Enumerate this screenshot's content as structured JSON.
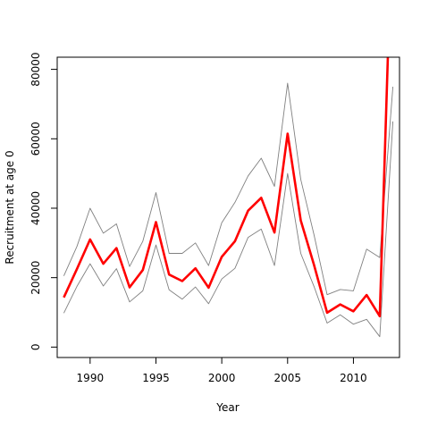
{
  "chart_data": {
    "type": "line",
    "xlabel": "Year",
    "ylabel": "Recruitment at age 0",
    "xlim": [
      1987.5,
      2013.5
    ],
    "ylim": [
      -3000,
      83500
    ],
    "x_ticks": [
      1990,
      1995,
      2000,
      2005,
      2010
    ],
    "y_ticks": [
      0,
      20000,
      40000,
      60000,
      80000
    ],
    "x": [
      1988,
      1989,
      1990,
      1991,
      1992,
      1993,
      1994,
      1995,
      1996,
      1997,
      1998,
      1999,
      2000,
      2001,
      2002,
      2003,
      2004,
      2005,
      2006,
      2007,
      2008,
      2009,
      2010,
      2011,
      2012,
      2013
    ],
    "series": [
      {
        "role": "upper",
        "color": "#808080",
        "values": [
          20500,
          29000,
          40000,
          32800,
          35500,
          23200,
          30500,
          44500,
          27000,
          27000,
          30000,
          23500,
          35800,
          41700,
          49300,
          54400,
          46300,
          76000,
          48300,
          32400,
          15100,
          16600,
          16200,
          28200,
          25800,
          75000
        ]
      },
      {
        "role": "estimate",
        "color": "#ff0000",
        "values": [
          14300,
          22500,
          31000,
          24000,
          28500,
          17200,
          22200,
          36000,
          20900,
          19000,
          22700,
          17100,
          26000,
          30500,
          39300,
          43000,
          33000,
          61500,
          36500,
          23700,
          9900,
          12300,
          10300,
          15000,
          8900,
          130000
        ]
      },
      {
        "role": "lower",
        "color": "#808080",
        "values": [
          9800,
          17500,
          24000,
          17600,
          22600,
          13000,
          16200,
          29400,
          16500,
          13800,
          17300,
          12500,
          19600,
          22700,
          31600,
          34000,
          23500,
          50000,
          27000,
          17500,
          6900,
          9300,
          6600,
          8000,
          3000,
          65000
        ]
      }
    ]
  }
}
